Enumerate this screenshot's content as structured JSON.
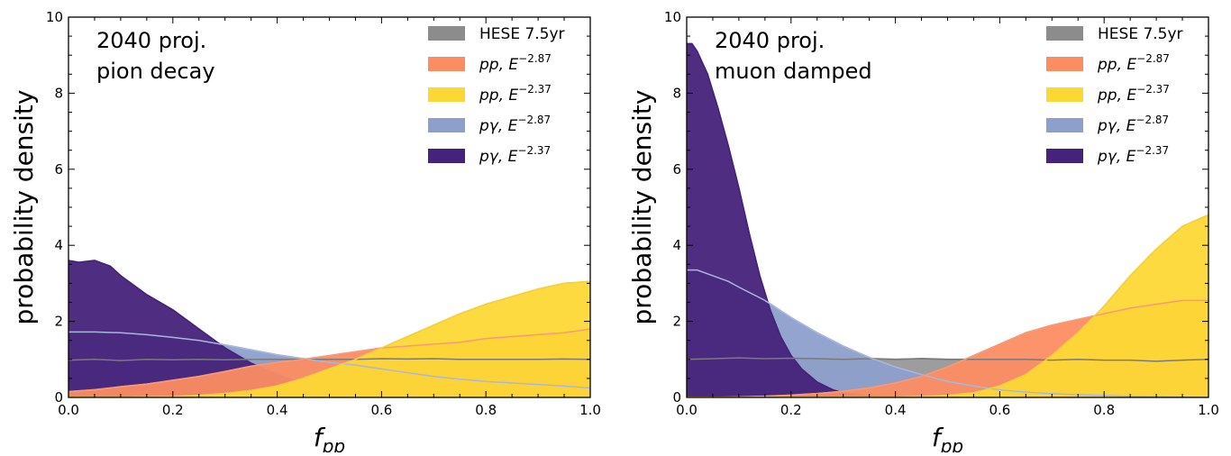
{
  "chart_data": [
    {
      "type": "area",
      "annotation": [
        "2040 proj.",
        "pion decay"
      ],
      "xlabel": "f",
      "xlabel_sub": "pp",
      "ylabel": "probability density",
      "xlim": [
        0,
        1
      ],
      "ylim": [
        0,
        10
      ],
      "xticks": [
        "0.0",
        "0.2",
        "0.4",
        "0.6",
        "0.8",
        "1.0"
      ],
      "yticks": [
        "0",
        "2",
        "4",
        "6",
        "8",
        "10"
      ],
      "legend_placement": "top-right",
      "series": [
        {
          "name": "HESE 7.5yr",
          "label": {
            "base": "HESE 7.5yr",
            "sup": ""
          },
          "color": "#8c8c8c",
          "x": [
            0,
            0.05,
            0.1,
            0.15,
            0.2,
            0.25,
            0.3,
            0.35,
            0.4,
            0.45,
            0.5,
            0.55,
            0.6,
            0.65,
            0.7,
            0.75,
            0.8,
            0.85,
            0.9,
            0.95,
            1.0
          ],
          "y": [
            0.98,
            1.0,
            0.97,
            1.0,
            0.99,
            1.0,
            0.99,
            1.0,
            1.0,
            1.0,
            1.0,
            1.0,
            1.02,
            1.01,
            1.02,
            1.0,
            1.0,
            1.0,
            1.0,
            1.01,
            1.0
          ]
        },
        {
          "name": "pp, E^-2.87",
          "label": {
            "base": "pp, E",
            "sup": "−2.87"
          },
          "color": "#fc8d62",
          "x": [
            0,
            0.05,
            0.1,
            0.15,
            0.2,
            0.25,
            0.3,
            0.35,
            0.4,
            0.45,
            0.5,
            0.55,
            0.6,
            0.65,
            0.7,
            0.75,
            0.8,
            0.85,
            0.9,
            0.95,
            1.0
          ],
          "y": [
            0.15,
            0.2,
            0.28,
            0.35,
            0.45,
            0.55,
            0.68,
            0.82,
            0.92,
            1.0,
            1.1,
            1.2,
            1.3,
            1.35,
            1.4,
            1.45,
            1.55,
            1.6,
            1.65,
            1.7,
            1.8
          ]
        },
        {
          "name": "pp, E^-2.37",
          "label": {
            "base": "pp, E",
            "sup": "−2.37"
          },
          "color": "#fdd835",
          "x": [
            0,
            0.05,
            0.1,
            0.15,
            0.2,
            0.25,
            0.3,
            0.35,
            0.4,
            0.45,
            0.5,
            0.55,
            0.6,
            0.65,
            0.7,
            0.75,
            0.8,
            0.85,
            0.9,
            0.95,
            1.0
          ],
          "y": [
            0,
            0,
            0,
            0.01,
            0.02,
            0.05,
            0.1,
            0.18,
            0.3,
            0.5,
            0.75,
            1.0,
            1.3,
            1.6,
            1.9,
            2.2,
            2.45,
            2.65,
            2.85,
            3.0,
            3.05
          ]
        },
        {
          "name": "pγ, E^-2.87",
          "label": {
            "base": "pγ, E",
            "sup": "−2.87"
          },
          "color": "#8da0cb",
          "x": [
            0,
            0.05,
            0.1,
            0.15,
            0.2,
            0.25,
            0.3,
            0.35,
            0.4,
            0.45,
            0.5,
            0.55,
            0.6,
            0.65,
            0.7,
            0.75,
            0.8,
            0.85,
            0.9,
            0.95,
            1.0
          ],
          "y": [
            1.72,
            1.72,
            1.7,
            1.65,
            1.58,
            1.5,
            1.38,
            1.25,
            1.12,
            1.02,
            0.92,
            0.85,
            0.75,
            0.65,
            0.55,
            0.48,
            0.42,
            0.38,
            0.34,
            0.3,
            0.25
          ]
        },
        {
          "name": "pγ, E^-2.37",
          "label": {
            "base": "pγ, E",
            "sup": "−2.37"
          },
          "color": "#46237a",
          "x": [
            0,
            0.02,
            0.05,
            0.08,
            0.1,
            0.15,
            0.2,
            0.25,
            0.3,
            0.35,
            0.4,
            0.45,
            0.5,
            0.55,
            0.6,
            0.65,
            0.7,
            0.8,
            0.9,
            1.0
          ],
          "y": [
            3.6,
            3.55,
            3.6,
            3.45,
            3.2,
            2.7,
            2.3,
            1.8,
            1.3,
            0.9,
            0.6,
            0.35,
            0.2,
            0.1,
            0.06,
            0.03,
            0.01,
            0,
            0,
            0
          ]
        }
      ]
    },
    {
      "type": "area",
      "annotation": [
        "2040 proj.",
        "muon damped"
      ],
      "xlabel": "f",
      "xlabel_sub": "pp",
      "ylabel": "probability density",
      "xlim": [
        0,
        1
      ],
      "ylim": [
        0,
        10
      ],
      "xticks": [
        "0.0",
        "0.2",
        "0.4",
        "0.6",
        "0.8",
        "1.0"
      ],
      "yticks": [
        "0",
        "2",
        "4",
        "6",
        "8",
        "10"
      ],
      "legend_placement": "top-right",
      "series": [
        {
          "name": "HESE 7.5yr",
          "label": {
            "base": "HESE 7.5yr",
            "sup": ""
          },
          "color": "#8c8c8c",
          "x": [
            0,
            0.05,
            0.1,
            0.15,
            0.2,
            0.25,
            0.3,
            0.35,
            0.4,
            0.45,
            0.5,
            0.55,
            0.6,
            0.65,
            0.7,
            0.75,
            0.8,
            0.85,
            0.9,
            0.95,
            1.0
          ],
          "y": [
            1.0,
            1.02,
            1.04,
            1.02,
            1.03,
            1.02,
            1.0,
            1.02,
            1.0,
            1.02,
            1.0,
            1.0,
            1.0,
            1.0,
            0.98,
            1.0,
            0.98,
            0.98,
            0.95,
            0.98,
            1.0
          ]
        },
        {
          "name": "pp, E^-2.87",
          "label": {
            "base": "pp, E",
            "sup": "−2.87"
          },
          "color": "#fc8d62",
          "x": [
            0,
            0.05,
            0.1,
            0.15,
            0.2,
            0.25,
            0.3,
            0.35,
            0.4,
            0.45,
            0.5,
            0.55,
            0.6,
            0.65,
            0.7,
            0.75,
            0.8,
            0.85,
            0.9,
            0.95,
            1.0
          ],
          "y": [
            0,
            0,
            0.01,
            0.03,
            0.06,
            0.1,
            0.16,
            0.25,
            0.38,
            0.55,
            0.8,
            1.1,
            1.4,
            1.7,
            1.9,
            2.05,
            2.2,
            2.35,
            2.45,
            2.55,
            2.55
          ]
        },
        {
          "name": "pp, E^-2.37",
          "label": {
            "base": "pp, E",
            "sup": "−2.37"
          },
          "color": "#fdd835",
          "x": [
            0,
            0.05,
            0.1,
            0.15,
            0.2,
            0.25,
            0.3,
            0.35,
            0.4,
            0.45,
            0.5,
            0.55,
            0.6,
            0.65,
            0.7,
            0.75,
            0.8,
            0.85,
            0.9,
            0.95,
            1.0
          ],
          "y": [
            0,
            0,
            0,
            0,
            0,
            0,
            0,
            0,
            0,
            0.02,
            0.05,
            0.12,
            0.3,
            0.6,
            1.1,
            1.7,
            2.4,
            3.2,
            3.9,
            4.5,
            4.8
          ]
        },
        {
          "name": "pγ, E^-2.87",
          "label": {
            "base": "pγ, E",
            "sup": "−2.87"
          },
          "color": "#8da0cb",
          "x": [
            0,
            0.02,
            0.05,
            0.08,
            0.1,
            0.15,
            0.2,
            0.25,
            0.3,
            0.35,
            0.4,
            0.45,
            0.5,
            0.55,
            0.6,
            0.65,
            0.7,
            0.75,
            0.8,
            0.85,
            0.9,
            0.95,
            1.0
          ],
          "y": [
            3.35,
            3.35,
            3.2,
            3.05,
            2.9,
            2.55,
            2.1,
            1.7,
            1.35,
            1.05,
            0.8,
            0.6,
            0.42,
            0.3,
            0.2,
            0.14,
            0.1,
            0.07,
            0.05,
            0.03,
            0.02,
            0.01,
            0
          ]
        },
        {
          "name": "pγ, E^-2.37",
          "label": {
            "base": "pγ, E",
            "sup": "−2.37"
          },
          "color": "#46237a",
          "x": [
            0,
            0.01,
            0.02,
            0.04,
            0.06,
            0.08,
            0.1,
            0.12,
            0.14,
            0.16,
            0.18,
            0.2,
            0.22,
            0.25,
            0.28,
            0.3,
            0.35,
            0.4,
            0.5,
            1.0
          ],
          "y": [
            9.3,
            9.3,
            9.1,
            8.5,
            7.6,
            6.6,
            5.5,
            4.3,
            3.2,
            2.3,
            1.6,
            1.1,
            0.75,
            0.4,
            0.2,
            0.12,
            0.04,
            0.01,
            0,
            0
          ]
        }
      ]
    }
  ]
}
